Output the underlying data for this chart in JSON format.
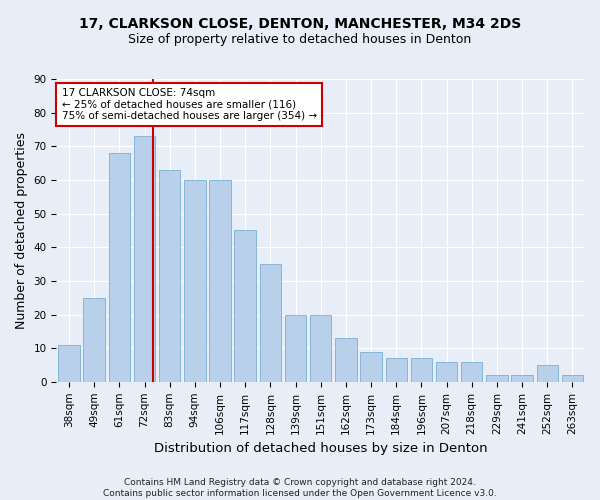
{
  "title": "17, CLARKSON CLOSE, DENTON, MANCHESTER, M34 2DS",
  "subtitle": "Size of property relative to detached houses in Denton",
  "xlabel": "Distribution of detached houses by size in Denton",
  "ylabel": "Number of detached properties",
  "categories": [
    "38sqm",
    "49sqm",
    "61sqm",
    "72sqm",
    "83sqm",
    "94sqm",
    "106sqm",
    "117sqm",
    "128sqm",
    "139sqm",
    "151sqm",
    "162sqm",
    "173sqm",
    "184sqm",
    "196sqm",
    "207sqm",
    "218sqm",
    "229sqm",
    "241sqm",
    "252sqm",
    "263sqm"
  ],
  "values": [
    11,
    25,
    68,
    73,
    63,
    60,
    60,
    45,
    35,
    20,
    20,
    13,
    9,
    7,
    7,
    6,
    6,
    2,
    2,
    5,
    2
  ],
  "bar_color": "#b8d0ea",
  "bar_edge_color": "#7aafd4",
  "red_line_x": 3.35,
  "annotation_line1": "17 CLARKSON CLOSE: 74sqm",
  "annotation_line2": "← 25% of detached houses are smaller (116)",
  "annotation_line3": "75% of semi-detached houses are larger (354) →",
  "footer1": "Contains HM Land Registry data © Crown copyright and database right 2024.",
  "footer2": "Contains public sector information licensed under the Open Government Licence v3.0.",
  "ylim": [
    0,
    90
  ],
  "yticks": [
    0,
    10,
    20,
    30,
    40,
    50,
    60,
    70,
    80,
    90
  ],
  "background_color": "#e8eef8",
  "grid_color": "#ffffff",
  "annotation_box_color": "#ffffff",
  "annotation_box_edge": "#cc0000",
  "title_fontsize": 10,
  "subtitle_fontsize": 9,
  "axis_label_fontsize": 9,
  "tick_fontsize": 7.5,
  "annotation_fontsize": 7.5,
  "footer_fontsize": 6.5
}
